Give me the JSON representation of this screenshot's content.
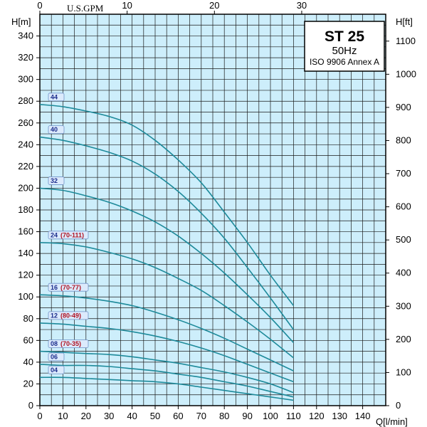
{
  "title_box": {
    "model": "ST 25",
    "frequency": "50Hz",
    "standard": "ISO 9906 Annex A"
  },
  "chart_data": {
    "type": "line",
    "xlabel": "Q[l/min]",
    "ylabel_left": "H[m]",
    "ylabel_right": "H[ft]",
    "xlabel_top": "U.S.GPM",
    "xlim": [
      0,
      150
    ],
    "ylim": [
      0,
      360
    ],
    "x_ticks": [
      0,
      10,
      20,
      30,
      40,
      50,
      60,
      70,
      80,
      90,
      100,
      110,
      120,
      130,
      140
    ],
    "y_ticks_left": [
      0,
      20,
      40,
      60,
      80,
      100,
      120,
      140,
      160,
      180,
      200,
      220,
      240,
      260,
      280,
      300,
      320,
      340
    ],
    "y_ticks_right": [
      0,
      100,
      200,
      300,
      400,
      500,
      600,
      700,
      800,
      900,
      1000,
      1100
    ],
    "x_ticks_top": [
      0,
      10,
      20,
      30
    ],
    "grid": true,
    "x": [
      0,
      10,
      20,
      30,
      40,
      50,
      60,
      70,
      80,
      90,
      100,
      110
    ],
    "series": [
      {
        "label": "44",
        "sub": "",
        "values": [
          277,
          275,
          271,
          266,
          258,
          244,
          226,
          205,
          178,
          150,
          120,
          92
        ]
      },
      {
        "label": "40",
        "sub": "",
        "values": [
          247,
          244,
          239,
          233,
          225,
          213,
          197,
          177,
          154,
          127,
          99,
          70
        ]
      },
      {
        "label": "32",
        "sub": "",
        "values": [
          200,
          198,
          193,
          187,
          179,
          169,
          156,
          140,
          122,
          102,
          81,
          58
        ]
      },
      {
        "label": "24",
        "sub": "(70-111)",
        "values": [
          150,
          149,
          146,
          141,
          135,
          127,
          117,
          106,
          92,
          77,
          61,
          44
        ]
      },
      {
        "label": "16",
        "sub": "(70-77)",
        "values": [
          102,
          101,
          99,
          96,
          92,
          86,
          79,
          71,
          62,
          52,
          42,
          32
        ]
      },
      {
        "label": "12",
        "sub": "(80-49)",
        "values": [
          76,
          75,
          73,
          71,
          68,
          64,
          59,
          53,
          46,
          38,
          30,
          22
        ]
      },
      {
        "label": "08",
        "sub": "(70-35)",
        "values": [
          50,
          49,
          48,
          47,
          45,
          42,
          39,
          35,
          31,
          26,
          20,
          12
        ]
      },
      {
        "label": "06",
        "sub": "",
        "values": [
          38,
          37,
          37,
          36,
          34,
          32,
          29,
          26,
          22,
          18,
          13,
          8
        ]
      },
      {
        "label": "04",
        "sub": "",
        "values": [
          26,
          26,
          25,
          24,
          23,
          22,
          20,
          17,
          14,
          11,
          8,
          5
        ]
      }
    ]
  },
  "colors": {
    "plot_bg": "#cdeefb",
    "grid": "#1a1a1a",
    "curve": "#1d8a9a",
    "badge_fill": "#dceafc",
    "badge_stroke": "#6f93c8"
  }
}
